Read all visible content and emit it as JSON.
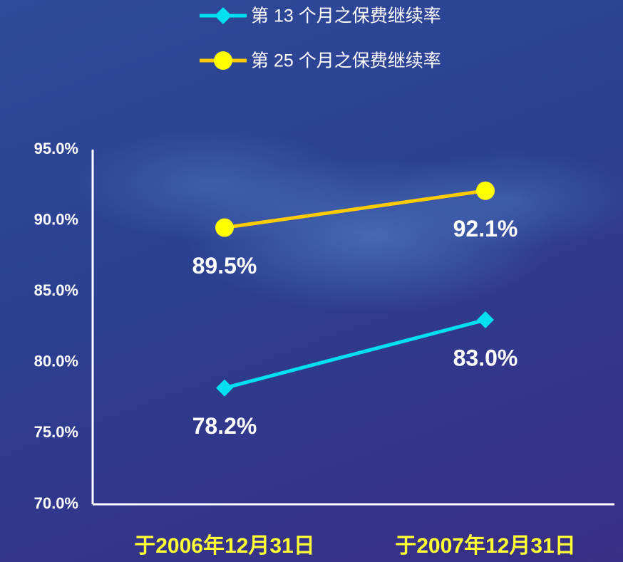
{
  "chart_data": {
    "type": "line",
    "categories": [
      "于2006年12月31日",
      "于2007年12月31日"
    ],
    "series": [
      {
        "name": "第 13 个月之保费继续率",
        "color": "#00e0f0",
        "marker": "diamond",
        "values": [
          78.2,
          83.0
        ],
        "value_labels": [
          "78.2%",
          "83.0%"
        ]
      },
      {
        "name": "第 25 个月之保费继续率",
        "color": "#ffcc00",
        "marker_color": "#ffff00",
        "marker": "circle",
        "values": [
          89.5,
          92.1
        ],
        "value_labels": [
          "89.5%",
          "92.1%"
        ]
      }
    ],
    "ylim": [
      70,
      95
    ],
    "yticks": [
      {
        "value": 70,
        "label": "70.0%"
      },
      {
        "value": 75,
        "label": "75.0%"
      },
      {
        "value": 80,
        "label": "80.0%"
      },
      {
        "value": 85,
        "label": "85.0%"
      },
      {
        "value": 90,
        "label": "90.0%"
      },
      {
        "value": 95,
        "label": "95.0%"
      }
    ],
    "grid": false,
    "legend": "top"
  }
}
